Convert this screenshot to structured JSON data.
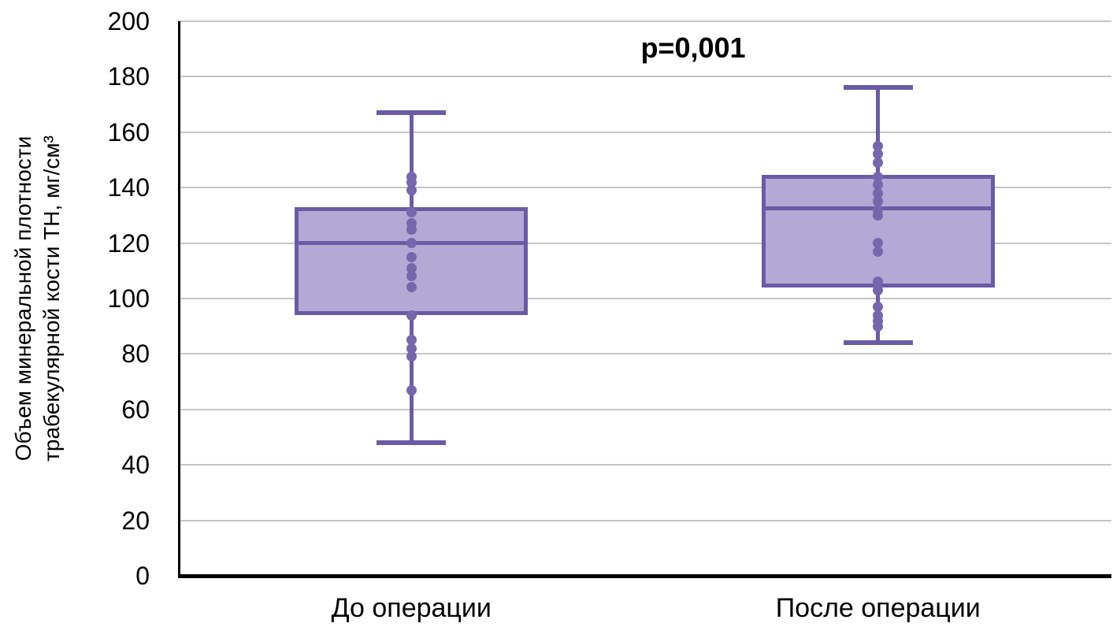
{
  "annotation": {
    "p_value": "p=0,001"
  },
  "y_axis": {
    "label_lines": [
      "Объем минеральной плотности",
      "трабекулярной кости ТН, мг/см³"
    ],
    "min": 0,
    "max": 200,
    "tick_step": 20
  },
  "colors": {
    "box_fill": "#b3a9d4",
    "box_stroke": "#6b5ba5",
    "dot": "#7667ad",
    "gridline": "#c5c5c5",
    "axis": "#000000",
    "text": "#000000"
  },
  "chart_data": {
    "type": "boxplot",
    "title": "p=0,001",
    "ylabel": "Объем минеральной плотности трабекулярной кости ТН, мг/см³",
    "ylim": [
      0,
      200
    ],
    "yticks": [
      0,
      20,
      40,
      60,
      80,
      100,
      120,
      140,
      160,
      180,
      200
    ],
    "grid": "horizontal",
    "legend": "none",
    "categories": [
      "До операции",
      "После операции"
    ],
    "series": [
      {
        "name": "До операции",
        "whisker_low": 48,
        "q1": 94,
        "median": 120,
        "q3": 133,
        "whisker_high": 167,
        "points": [
          144,
          142,
          139,
          131,
          127,
          125,
          120,
          115,
          111,
          108,
          104,
          94,
          85,
          82,
          79,
          67
        ]
      },
      {
        "name": "После операции",
        "whisker_low": 84,
        "q1": 104,
        "median": 132.5,
        "q3": 144.5,
        "whisker_high": 176,
        "points": [
          155,
          152,
          149,
          144,
          141,
          138,
          135,
          132,
          130,
          120,
          117,
          106,
          103,
          97,
          94,
          92,
          90
        ]
      }
    ]
  }
}
